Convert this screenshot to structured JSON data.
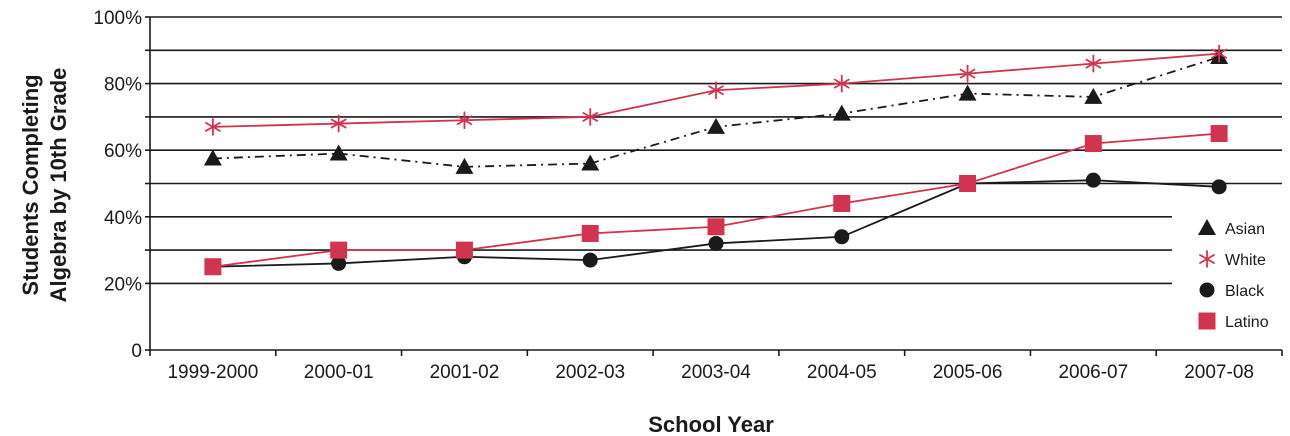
{
  "chart_data": {
    "type": "line",
    "xlabel": "School Year",
    "ylabel_lines": [
      "Students Completing",
      "Algebra by 10th Grade"
    ],
    "categories": [
      "1999-2000",
      "2000-01",
      "2001-02",
      "2002-03",
      "2003-04",
      "2004-05",
      "2005-06",
      "2006-07",
      "2007-08"
    ],
    "ylim": [
      0,
      100
    ],
    "y_ticks": [
      {
        "value": 0,
        "label": "0"
      },
      {
        "value": 20,
        "label": "20%"
      },
      {
        "value": 40,
        "label": "40%"
      },
      {
        "value": 60,
        "label": "60%"
      },
      {
        "value": 80,
        "label": "80%"
      },
      {
        "value": 100,
        "label": "100%"
      }
    ],
    "gridlines": [
      20,
      30,
      40,
      50,
      60,
      70,
      80,
      90,
      100
    ],
    "legend_position": "right",
    "series": [
      {
        "name": "Asian",
        "marker": "triangle",
        "color": "#1a1a1a",
        "line_style": "dashdot",
        "values": [
          57.5,
          59,
          55,
          56,
          67,
          71,
          77,
          76,
          88
        ]
      },
      {
        "name": "White",
        "marker": "asterisk",
        "color": "#d0344f",
        "line_style": "solid",
        "values": [
          67,
          68,
          69,
          70,
          78,
          80,
          83,
          86,
          89
        ]
      },
      {
        "name": "Black",
        "marker": "circle",
        "color": "#1a1a1a",
        "line_style": "solid",
        "values": [
          25,
          26,
          28,
          27,
          32,
          34,
          50,
          51,
          49
        ]
      },
      {
        "name": "Latino",
        "marker": "square",
        "color": "#d0344f",
        "line_style": "solid",
        "values": [
          25,
          30,
          30,
          35,
          37,
          44,
          50,
          62,
          65
        ]
      }
    ]
  }
}
